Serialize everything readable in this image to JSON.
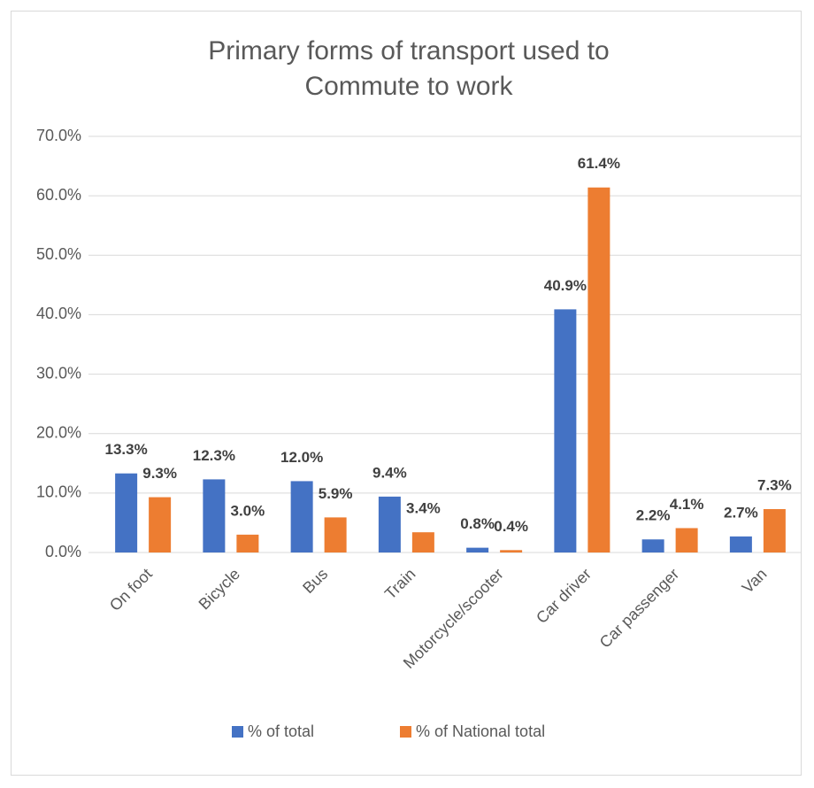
{
  "chart_data": {
    "type": "bar",
    "title": "Primary forms of transport used to Commute to work",
    "categories": [
      "On foot",
      "Bicycle",
      "Bus",
      "Train",
      "Motorcycle/scooter",
      "Car driver",
      "Car passenger",
      "Van"
    ],
    "series": [
      {
        "name": "% of total",
        "color": "#4472c4",
        "values": [
          13.3,
          12.3,
          12.0,
          9.4,
          0.8,
          40.9,
          2.2,
          2.7
        ],
        "value_labels": [
          "13.3%",
          "12.3%",
          "12.0%",
          "9.4%",
          "0.8%",
          "40.9%",
          "2.2%",
          "2.7%"
        ]
      },
      {
        "name": "% of National total",
        "color": "#ed7d31",
        "values": [
          9.3,
          3.0,
          5.9,
          3.4,
          0.4,
          61.4,
          4.1,
          7.3
        ],
        "value_labels": [
          "9.3%",
          "3.0%",
          "5.9%",
          "3.4%",
          "0.4%",
          "61.4%",
          "4.1%",
          "7.3%"
        ]
      }
    ],
    "ylim": [
      0,
      70
    ],
    "yticks": [
      {
        "value": 0,
        "label": "0.0%"
      },
      {
        "value": 10,
        "label": "10.0%"
      },
      {
        "value": 20,
        "label": "20.0%"
      },
      {
        "value": 30,
        "label": "30.0%"
      },
      {
        "value": 40,
        "label": "40.0%"
      },
      {
        "value": 50,
        "label": "50.0%"
      },
      {
        "value": 60,
        "label": "60.0%"
      },
      {
        "value": 70,
        "label": "70.0%"
      }
    ],
    "grid": true,
    "legend": "bottom"
  }
}
